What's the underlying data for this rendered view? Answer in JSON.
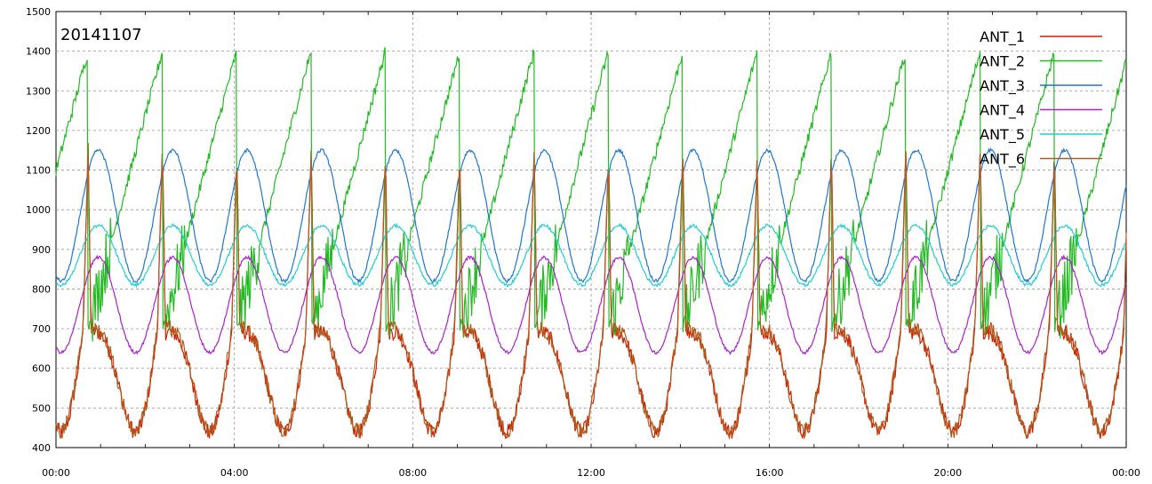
{
  "chart_data": {
    "type": "line",
    "annotation": "20141107",
    "x_ticks": [
      "00:00",
      "04:00",
      "08:00",
      "12:00",
      "16:00",
      "20:00",
      "00:00"
    ],
    "y_ticks": [
      "400",
      "500",
      "600",
      "700",
      "800",
      "900",
      "1000",
      "1100",
      "1200",
      "1300",
      "1400",
      "1500"
    ],
    "ylim": [
      400,
      1500
    ],
    "xlim_hours": [
      0,
      24
    ],
    "grid": true,
    "legend_position": "top-right",
    "series_style": "periodic oscillation, ~100 minute period, approximate values",
    "series": [
      {
        "name": "ANT_1",
        "color": "#cc2200",
        "min": 480,
        "mean": 690,
        "peak": 1150,
        "period_h": 1.667,
        "phase_h": 0.72,
        "shape": "spiky"
      },
      {
        "name": "ANT_2",
        "color": "#22bb22",
        "min": 700,
        "mean": 1000,
        "peak": 1400,
        "period_h": 1.667,
        "phase_h": 0.72,
        "shape": "sawtooth"
      },
      {
        "name": "ANT_3",
        "color": "#1f77d4",
        "min": 820,
        "mean": 990,
        "peak": 1150,
        "period_h": 1.667,
        "phase_h": 0.95,
        "shape": "smooth"
      },
      {
        "name": "ANT_4",
        "color": "#aa22cc",
        "min": 640,
        "mean": 780,
        "peak": 880,
        "period_h": 1.667,
        "phase_h": 0.95,
        "shape": "smooth"
      },
      {
        "name": "ANT_5",
        "color": "#22d0d0",
        "min": 810,
        "mean": 880,
        "peak": 960,
        "period_h": 1.667,
        "phase_h": 0.95,
        "shape": "smooth"
      },
      {
        "name": "ANT_6",
        "color": "#b35a1f",
        "min": 480,
        "mean": 700,
        "peak": 1150,
        "period_h": 1.667,
        "phase_h": 0.72,
        "shape": "spiky"
      }
    ]
  }
}
